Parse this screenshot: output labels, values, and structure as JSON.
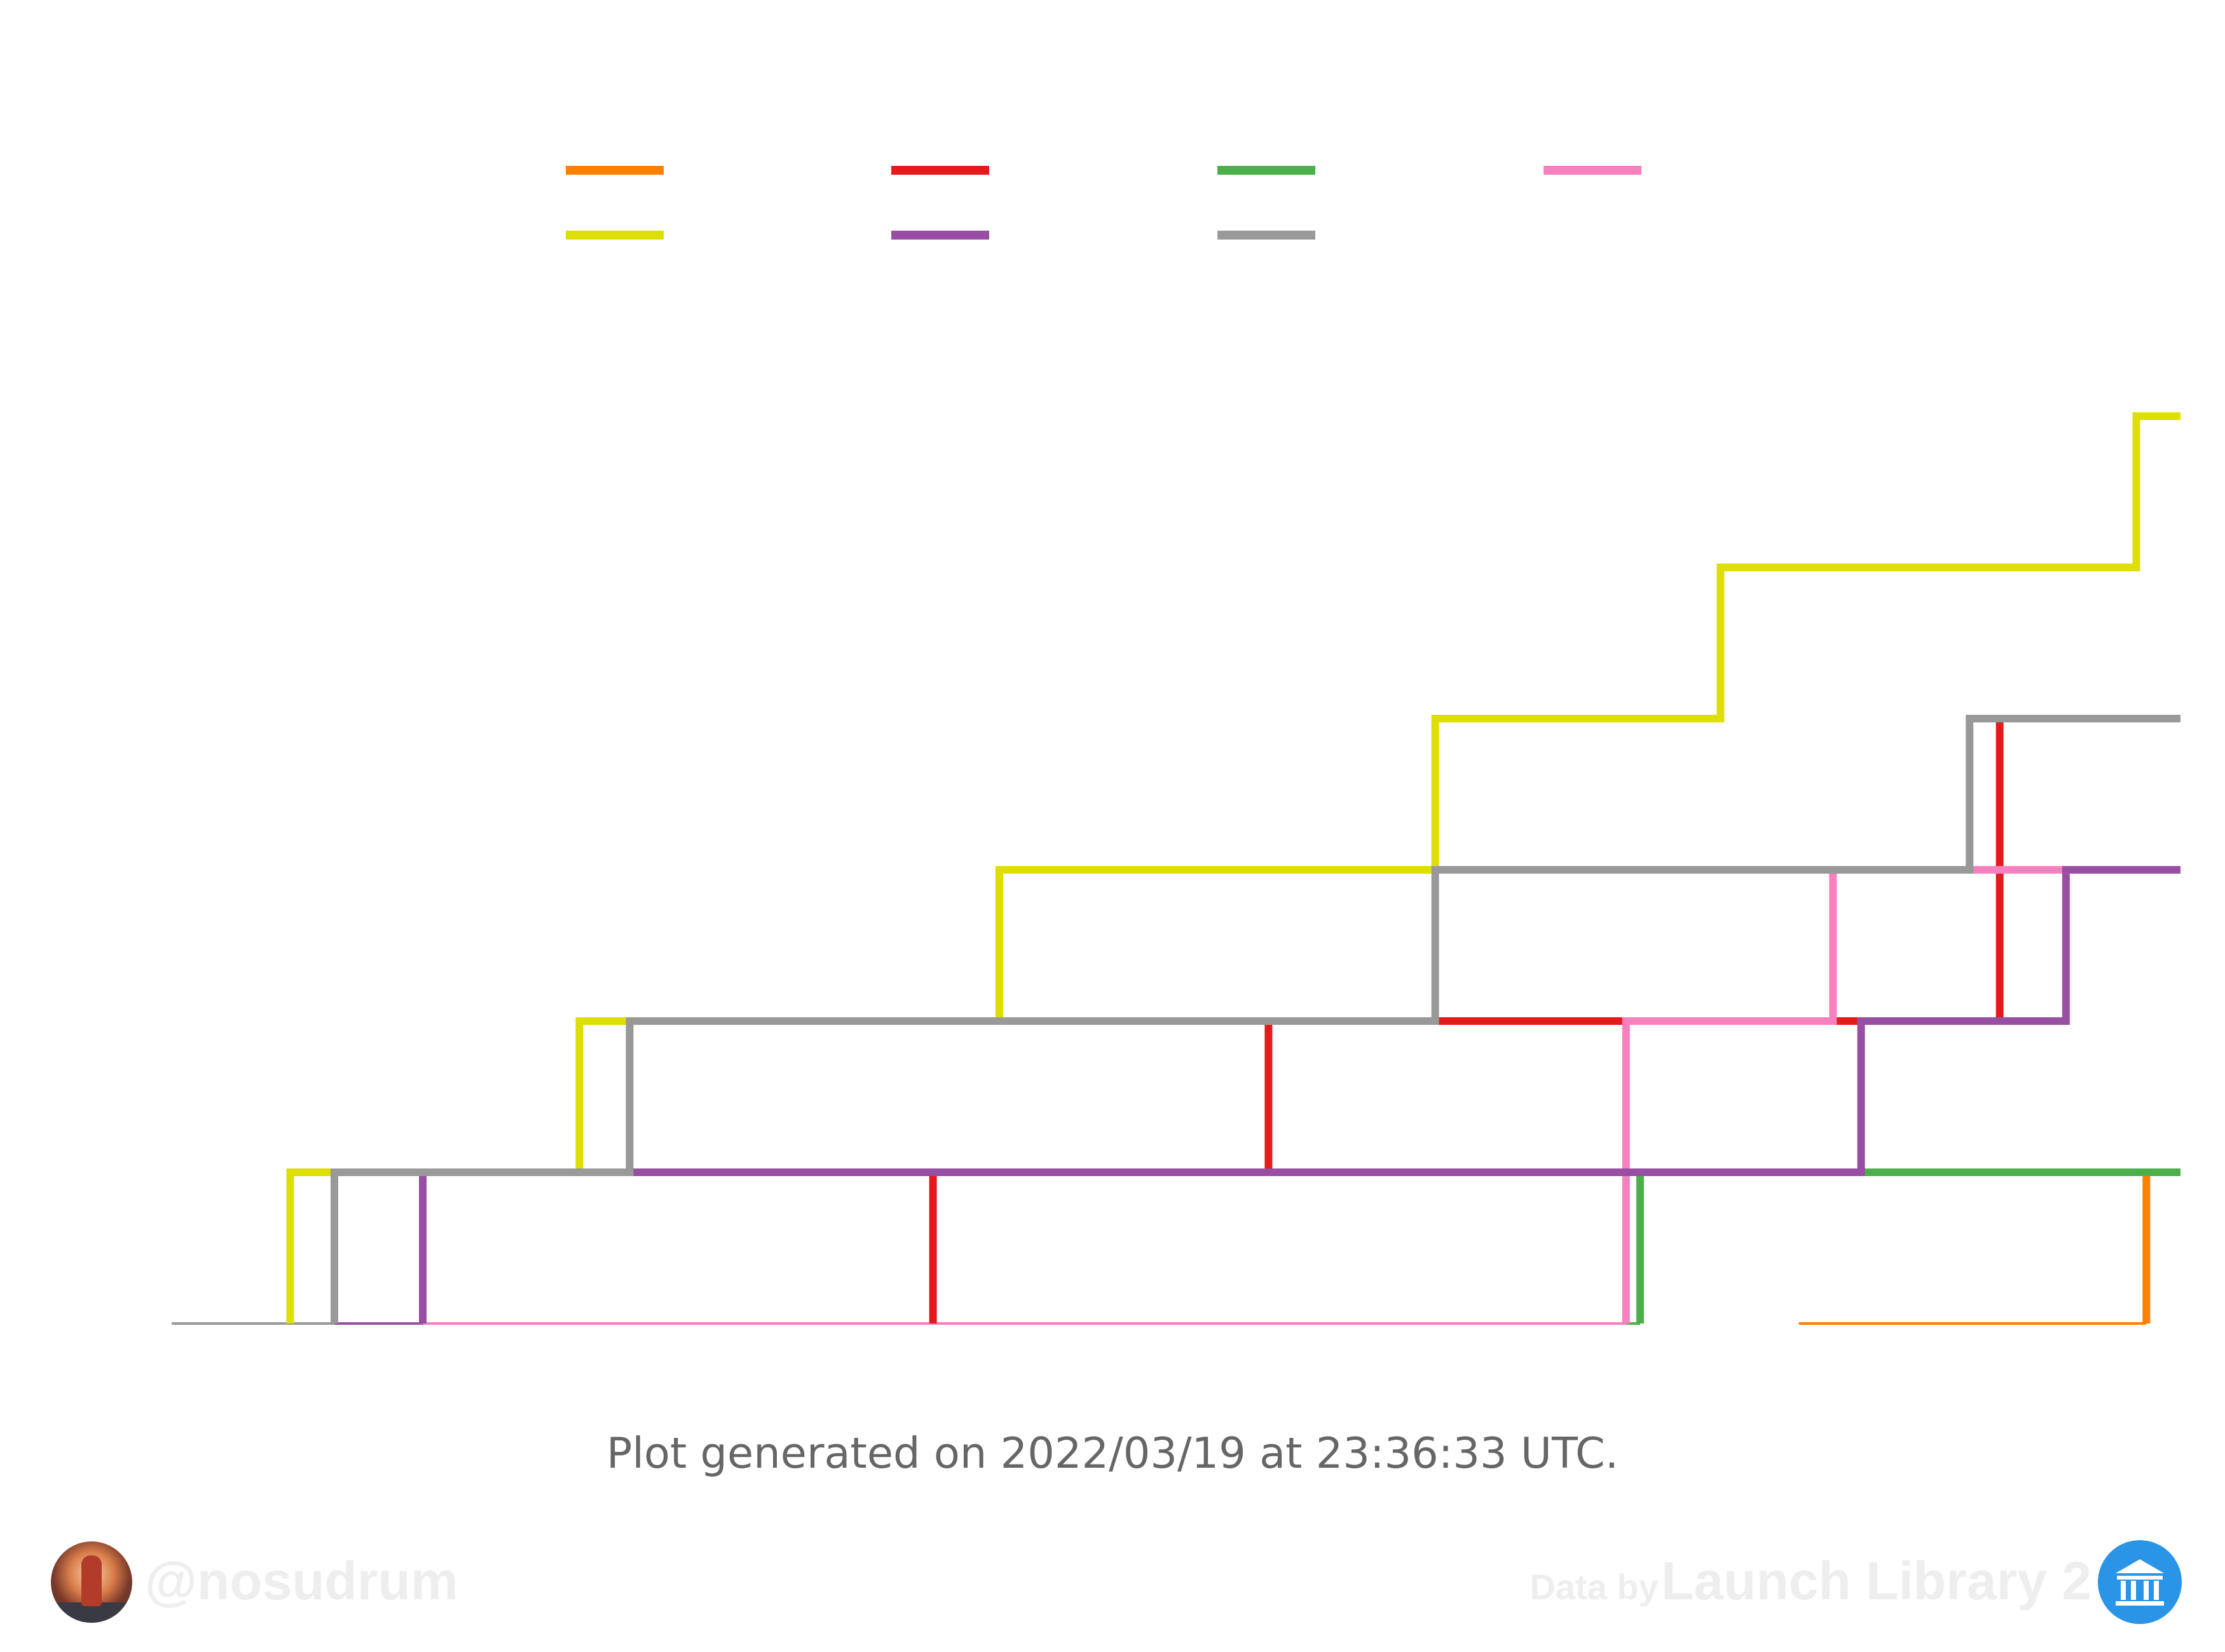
{
  "chart_data": {
    "type": "line",
    "step": "post",
    "x_range": [
      0.0,
      1.0
    ],
    "ylim": [
      0,
      6
    ],
    "grid": false,
    "legend_placement": "top-center",
    "series": [
      {
        "color": "#ff7f00",
        "points": [
          [
            0.81,
            0
          ],
          [
            0.983,
            1
          ],
          [
            1.0,
            1
          ]
        ]
      },
      {
        "color": "#e41a1c",
        "points": [
          [
            0.103,
            0
          ],
          [
            0.103,
            0
          ],
          [
            0.379,
            1
          ],
          [
            0.546,
            2
          ],
          [
            0.91,
            4
          ],
          [
            1.0,
            4
          ]
        ]
      },
      {
        "color": "#4daf4a",
        "points": [
          [
            0.445,
            0
          ],
          [
            0.731,
            1
          ],
          [
            1.0,
            1
          ]
        ]
      },
      {
        "color": "#f781bf",
        "points": [
          [
            0.125,
            0
          ],
          [
            0.443,
            0
          ],
          [
            0.724,
            2
          ],
          [
            0.827,
            3
          ],
          [
            1.0,
            3
          ]
        ]
      },
      {
        "color": "#dede00",
        "points": [
          [
            0.0,
            0
          ],
          [
            0.059,
            1
          ],
          [
            0.203,
            2
          ],
          [
            0.412,
            3
          ],
          [
            0.629,
            4
          ],
          [
            0.771,
            5
          ],
          [
            0.978,
            6
          ],
          [
            1.0,
            6
          ]
        ]
      },
      {
        "color": "#984ea3",
        "points": [
          [
            0.081,
            0
          ],
          [
            0.125,
            1
          ],
          [
            0.841,
            2
          ],
          [
            0.943,
            3
          ],
          [
            1.0,
            3
          ]
        ]
      },
      {
        "color": "#999999",
        "points": [
          [
            0.0,
            0
          ],
          [
            0.081,
            1
          ],
          [
            0.228,
            2
          ],
          [
            0.629,
            3
          ],
          [
            0.895,
            4
          ],
          [
            1.0,
            4
          ]
        ]
      }
    ],
    "legend_order": [
      0,
      1,
      2,
      3,
      4,
      5,
      6
    ],
    "footer_note": "Plot generated on 2022/03/19 at 23:36:33 UTC."
  },
  "branding": {
    "author_handle": "@nosudrum",
    "credit_prefix": "Data by",
    "credit_source": "Launch Library 2"
  }
}
